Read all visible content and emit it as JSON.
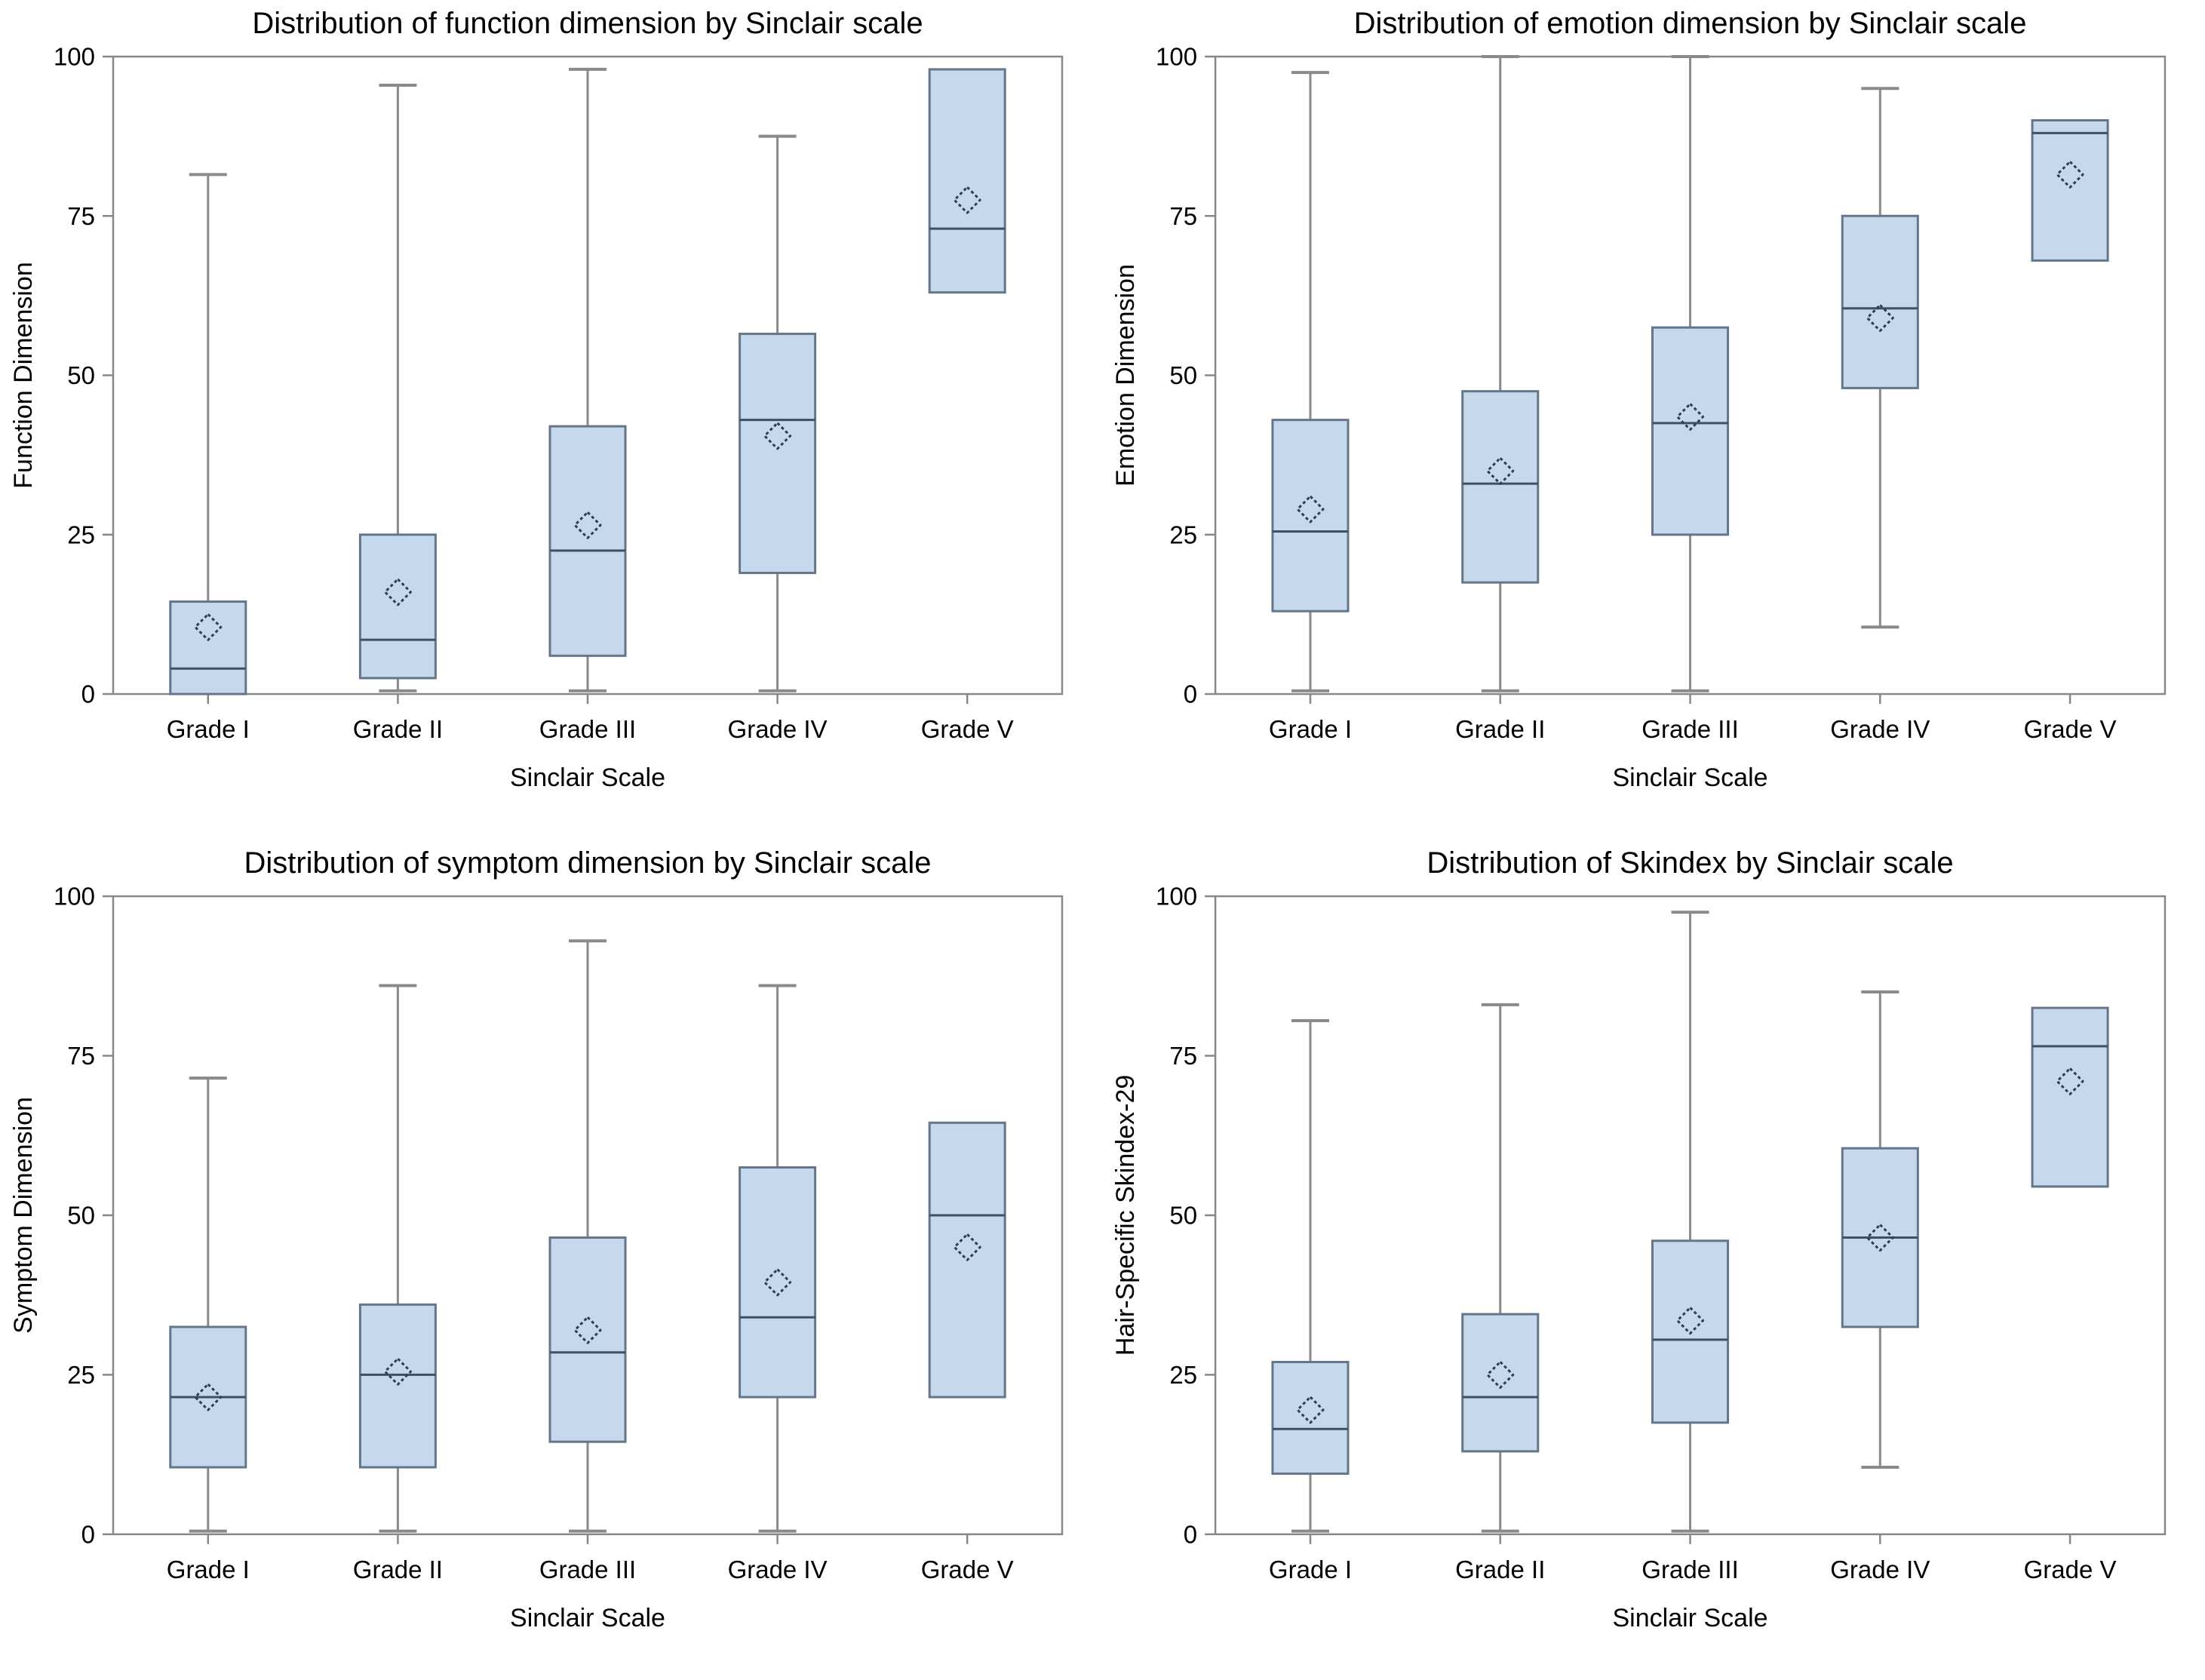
{
  "figure": {
    "background": "#ffffff",
    "layout": "2x2-grid-of-boxplots"
  },
  "style": {
    "box_fill": "#c6d9ec",
    "box_stroke": "#65768a",
    "median_color": "#3d5064",
    "whisker_color": "#8a8a8a",
    "frame_color": "#85898d",
    "mean_marker_color": "#2c3e50",
    "text_color": "#000000"
  },
  "chart_data": [
    {
      "type": "box",
      "position": "top-left",
      "title": "Distribution of function dimension by Sinclair scale",
      "xlabel": "Sinclair Scale",
      "ylabel": "Function Dimension",
      "ylim": [
        0,
        100
      ],
      "yticks": [
        0,
        25,
        50,
        75,
        100
      ],
      "grid": false,
      "legend": "none",
      "categories": [
        "Grade I",
        "Grade II",
        "Grade III",
        "Grade IV",
        "Grade V"
      ],
      "boxes": [
        {
          "category": "Grade I",
          "whisker_low": 0,
          "q1": 0,
          "median": 4,
          "q3": 14.5,
          "whisker_high": 81.5,
          "mean": 10.5
        },
        {
          "category": "Grade II",
          "whisker_low": 0.5,
          "q1": 2.5,
          "median": 8.5,
          "q3": 25,
          "whisker_high": 95.5,
          "mean": 16
        },
        {
          "category": "Grade III",
          "whisker_low": 0.5,
          "q1": 6,
          "median": 22.5,
          "q3": 42,
          "whisker_high": 98,
          "mean": 26.5
        },
        {
          "category": "Grade IV",
          "whisker_low": 0.5,
          "q1": 19,
          "median": 43,
          "q3": 56.5,
          "whisker_high": 87.5,
          "mean": 40.5
        },
        {
          "category": "Grade V",
          "whisker_low": 63,
          "q1": 63,
          "median": 73,
          "q3": 98,
          "whisker_high": 98,
          "mean": 77.5
        }
      ]
    },
    {
      "type": "box",
      "position": "top-right",
      "title": "Distribution of emotion dimension by Sinclair scale",
      "xlabel": "Sinclair Scale",
      "ylabel": "Emotion Dimension",
      "ylim": [
        0,
        100
      ],
      "yticks": [
        0,
        25,
        50,
        75,
        100
      ],
      "grid": false,
      "legend": "none",
      "categories": [
        "Grade I",
        "Grade II",
        "Grade III",
        "Grade IV",
        "Grade V"
      ],
      "boxes": [
        {
          "category": "Grade I",
          "whisker_low": 0.5,
          "q1": 13,
          "median": 25.5,
          "q3": 43,
          "whisker_high": 97.5,
          "mean": 29
        },
        {
          "category": "Grade II",
          "whisker_low": 0.5,
          "q1": 17.5,
          "median": 33,
          "q3": 47.5,
          "whisker_high": 100,
          "mean": 35
        },
        {
          "category": "Grade III",
          "whisker_low": 0.5,
          "q1": 25,
          "median": 42.5,
          "q3": 57.5,
          "whisker_high": 100,
          "mean": 43.5
        },
        {
          "category": "Grade IV",
          "whisker_low": 10.5,
          "q1": 48,
          "median": 60.5,
          "q3": 75,
          "whisker_high": 95,
          "mean": 59
        },
        {
          "category": "Grade V",
          "whisker_low": 68,
          "q1": 68,
          "median": 88,
          "q3": 90,
          "whisker_high": 90,
          "mean": 81.5
        }
      ]
    },
    {
      "type": "box",
      "position": "bottom-left",
      "title": "Distribution of symptom dimension by Sinclair scale",
      "xlabel": "Sinclair Scale",
      "ylabel": "Symptom Dimension",
      "ylim": [
        0,
        100
      ],
      "yticks": [
        0,
        25,
        50,
        75,
        100
      ],
      "grid": false,
      "legend": "none",
      "categories": [
        "Grade I",
        "Grade II",
        "Grade III",
        "Grade IV",
        "Grade V"
      ],
      "boxes": [
        {
          "category": "Grade I",
          "whisker_low": 0.5,
          "q1": 10.5,
          "median": 21.5,
          "q3": 32.5,
          "whisker_high": 71.5,
          "mean": 21.5
        },
        {
          "category": "Grade II",
          "whisker_low": 0.5,
          "q1": 10.5,
          "median": 25,
          "q3": 36,
          "whisker_high": 86,
          "mean": 25.5
        },
        {
          "category": "Grade III",
          "whisker_low": 0.5,
          "q1": 14.5,
          "median": 28.5,
          "q3": 46.5,
          "whisker_high": 93,
          "mean": 32
        },
        {
          "category": "Grade IV",
          "whisker_low": 0.5,
          "q1": 21.5,
          "median": 34,
          "q3": 57.5,
          "whisker_high": 86,
          "mean": 39.5
        },
        {
          "category": "Grade V",
          "whisker_low": 21.5,
          "q1": 21.5,
          "median": 50,
          "q3": 64.5,
          "whisker_high": 64.5,
          "mean": 45
        }
      ]
    },
    {
      "type": "box",
      "position": "bottom-right",
      "title": "Distribution of Skindex by Sinclair scale",
      "xlabel": "Sinclair Scale",
      "ylabel": "Hair-Specific Skindex-29",
      "ylim": [
        0,
        100
      ],
      "yticks": [
        0,
        25,
        50,
        75,
        100
      ],
      "grid": false,
      "legend": "none",
      "categories": [
        "Grade I",
        "Grade II",
        "Grade III",
        "Grade IV",
        "Grade V"
      ],
      "boxes": [
        {
          "category": "Grade I",
          "whisker_low": 0.5,
          "q1": 9.5,
          "median": 16.5,
          "q3": 27,
          "whisker_high": 80.5,
          "mean": 19.5
        },
        {
          "category": "Grade II",
          "whisker_low": 0.5,
          "q1": 13,
          "median": 21.5,
          "q3": 34.5,
          "whisker_high": 83,
          "mean": 25
        },
        {
          "category": "Grade III",
          "whisker_low": 0.5,
          "q1": 17.5,
          "median": 30.5,
          "q3": 46,
          "whisker_high": 97.5,
          "mean": 33.5
        },
        {
          "category": "Grade IV",
          "whisker_low": 10.5,
          "q1": 32.5,
          "median": 46.5,
          "q3": 60.5,
          "whisker_high": 85,
          "mean": 46.5
        },
        {
          "category": "Grade V",
          "whisker_low": 54.5,
          "q1": 54.5,
          "median": 76.5,
          "q3": 82.5,
          "whisker_high": 82.5,
          "mean": 71
        }
      ]
    }
  ]
}
